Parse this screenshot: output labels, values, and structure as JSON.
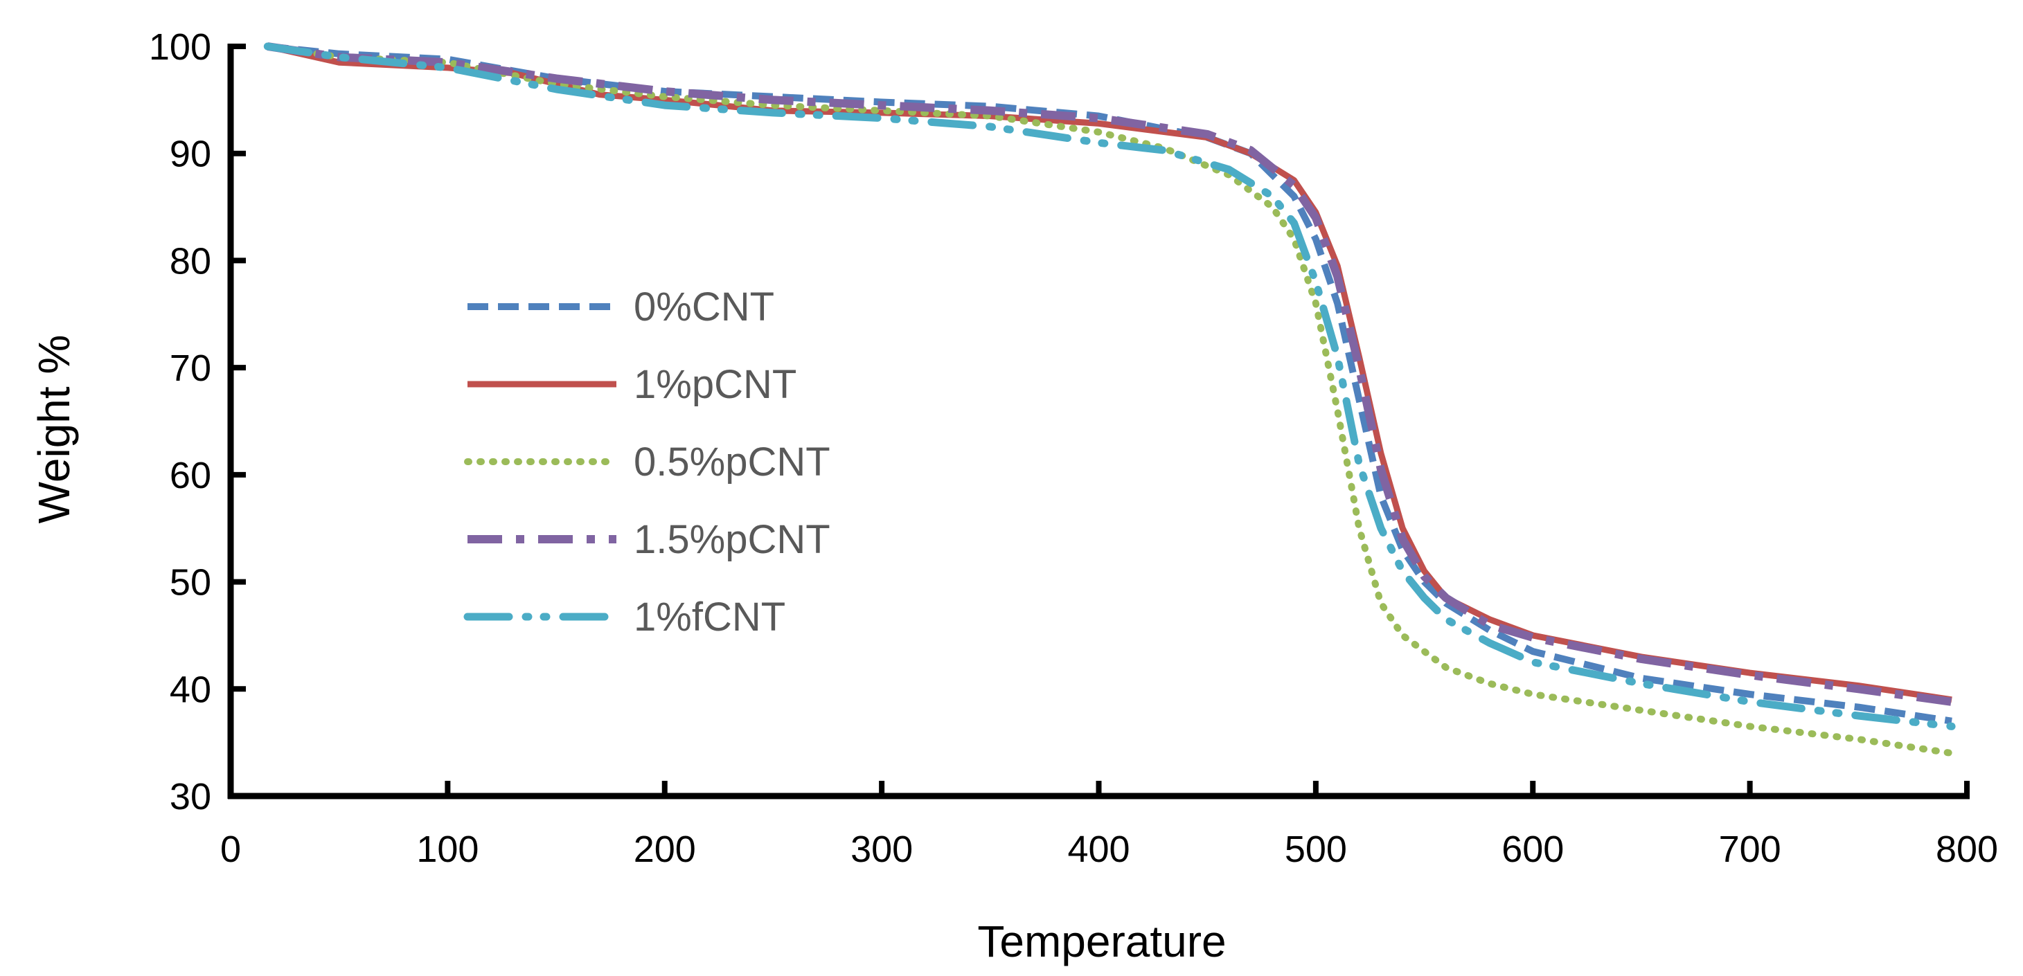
{
  "chart_data": {
    "type": "line",
    "title": "",
    "xlabel": "Temperature",
    "ylabel": "Weight %",
    "xlim": [
      0,
      800
    ],
    "ylim": [
      30,
      100
    ],
    "xticks": [
      0,
      100,
      200,
      300,
      400,
      500,
      600,
      700,
      800
    ],
    "yticks": [
      30,
      40,
      50,
      60,
      70,
      80,
      90,
      100
    ],
    "grid": false,
    "legend_position": "center-left",
    "series": [
      {
        "name": "0%CNT",
        "color": "#4F81BD",
        "dash": "dashed",
        "x": [
          17,
          50,
          100,
          150,
          200,
          250,
          300,
          350,
          400,
          450,
          470,
          490,
          500,
          510,
          520,
          530,
          540,
          550,
          560,
          580,
          600,
          650,
          700,
          750,
          793
        ],
        "y": [
          100,
          99.3,
          98.8,
          97,
          95.8,
          95.3,
          94.8,
          94.4,
          93.5,
          91.5,
          90,
          86,
          82,
          76,
          67,
          58,
          53,
          50,
          48,
          45.5,
          43.5,
          41,
          39.5,
          38.3,
          37
        ]
      },
      {
        "name": "1%pCNT",
        "color": "#C0504D",
        "dash": "solid",
        "x": [
          17,
          50,
          100,
          130,
          170,
          200,
          250,
          300,
          350,
          400,
          450,
          470,
          490,
          500,
          510,
          520,
          530,
          540,
          550,
          560,
          580,
          600,
          650,
          700,
          750,
          793
        ],
        "y": [
          100,
          98.5,
          98,
          97.5,
          95.5,
          95,
          94,
          93.8,
          93.5,
          92.8,
          91.5,
          90,
          87.5,
          84.5,
          79.5,
          71,
          62,
          55,
          51,
          48.5,
          46.5,
          45,
          43,
          41.5,
          40.3,
          39
        ]
      },
      {
        "name": "0.5%pCNT",
        "color": "#9BBB59",
        "dash": "dotted",
        "x": [
          17,
          50,
          100,
          150,
          200,
          250,
          300,
          350,
          400,
          430,
          460,
          480,
          490,
          500,
          510,
          520,
          530,
          540,
          560,
          580,
          600,
          650,
          700,
          750,
          793
        ],
        "y": [
          100,
          99,
          98.5,
          96.5,
          95.3,
          94.5,
          94,
          93.5,
          92,
          90.5,
          88,
          85,
          82,
          76,
          66,
          55,
          48,
          45,
          42,
          40.5,
          39.5,
          38,
          36.5,
          35.3,
          34
        ]
      },
      {
        "name": "1.5%pCNT",
        "color": "#8064A2",
        "dash": "dash-dot",
        "x": [
          17,
          50,
          100,
          150,
          200,
          250,
          300,
          350,
          400,
          450,
          470,
          490,
          500,
          510,
          520,
          530,
          540,
          550,
          560,
          580,
          600,
          650,
          700,
          750,
          793
        ],
        "y": [
          100,
          99,
          98.5,
          97,
          95.8,
          95,
          94.5,
          94,
          93.3,
          91.8,
          90.3,
          87,
          84,
          78.5,
          70,
          60.5,
          54,
          50.5,
          48.5,
          46,
          44.8,
          42.8,
          41.3,
          40,
          38.8
        ]
      },
      {
        "name": "1%fCNT",
        "color": "#4BACC6",
        "dash": "dash-dot-dot",
        "x": [
          17,
          50,
          100,
          150,
          200,
          250,
          300,
          350,
          400,
          430,
          460,
          480,
          490,
          500,
          510,
          520,
          530,
          540,
          550,
          560,
          580,
          600,
          650,
          700,
          750,
          793
        ],
        "y": [
          100,
          99,
          98,
          96,
          94.5,
          93.8,
          93.3,
          92.5,
          91,
          90.3,
          88.5,
          86,
          83.5,
          78,
          71,
          61,
          55,
          51,
          48.5,
          46.5,
          44.3,
          42.5,
          40.5,
          38.8,
          37.5,
          36.5
        ]
      }
    ]
  }
}
